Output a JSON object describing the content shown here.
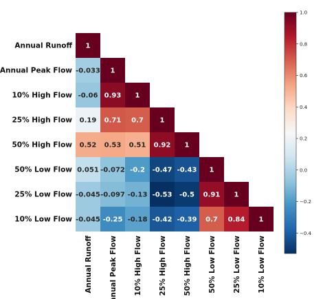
{
  "chart_data": {
    "type": "heatmap",
    "rows": [
      "Annual Runoff",
      "Annual Peak Flow",
      "10% High Flow",
      "25% High Flow",
      "50% High Flow",
      "50% Low Flow",
      "25% Low Flow",
      "10% Low Flow"
    ],
    "columns": [
      "Annual Runoff",
      "Annual Peak Flow",
      "10% High Flow",
      "25% High Flow",
      "50% High Flow",
      "50% Low Flow",
      "25% Low Flow",
      "10% Low Flow"
    ],
    "mask": "upper-triangle",
    "values": [
      [
        1
      ],
      [
        -0.033,
        1
      ],
      [
        -0.06,
        0.93,
        1
      ],
      [
        0.19,
        0.71,
        0.7,
        1
      ],
      [
        0.52,
        0.53,
        0.51,
        0.92,
        1
      ],
      [
        0.051,
        -0.072,
        -0.2,
        -0.47,
        -0.43,
        1
      ],
      [
        -0.045,
        -0.097,
        -0.13,
        -0.53,
        -0.5,
        0.91,
        1
      ],
      [
        -0.045,
        -0.25,
        -0.18,
        -0.42,
        -0.39,
        0.7,
        0.84,
        1
      ]
    ],
    "colormap": "RdBu_r",
    "vmin": -0.53,
    "vmax": 1.0,
    "colorbar_ticks": [
      "1.0",
      "0.8",
      "0.6",
      "0.4",
      "0.2",
      "0.0",
      "−0.2",
      "−0.4"
    ],
    "colorbar_tick_values": [
      1.0,
      0.8,
      0.6,
      0.4,
      0.2,
      0.0,
      -0.2,
      -0.4
    ],
    "colorbar_position": "right",
    "grid": false
  }
}
